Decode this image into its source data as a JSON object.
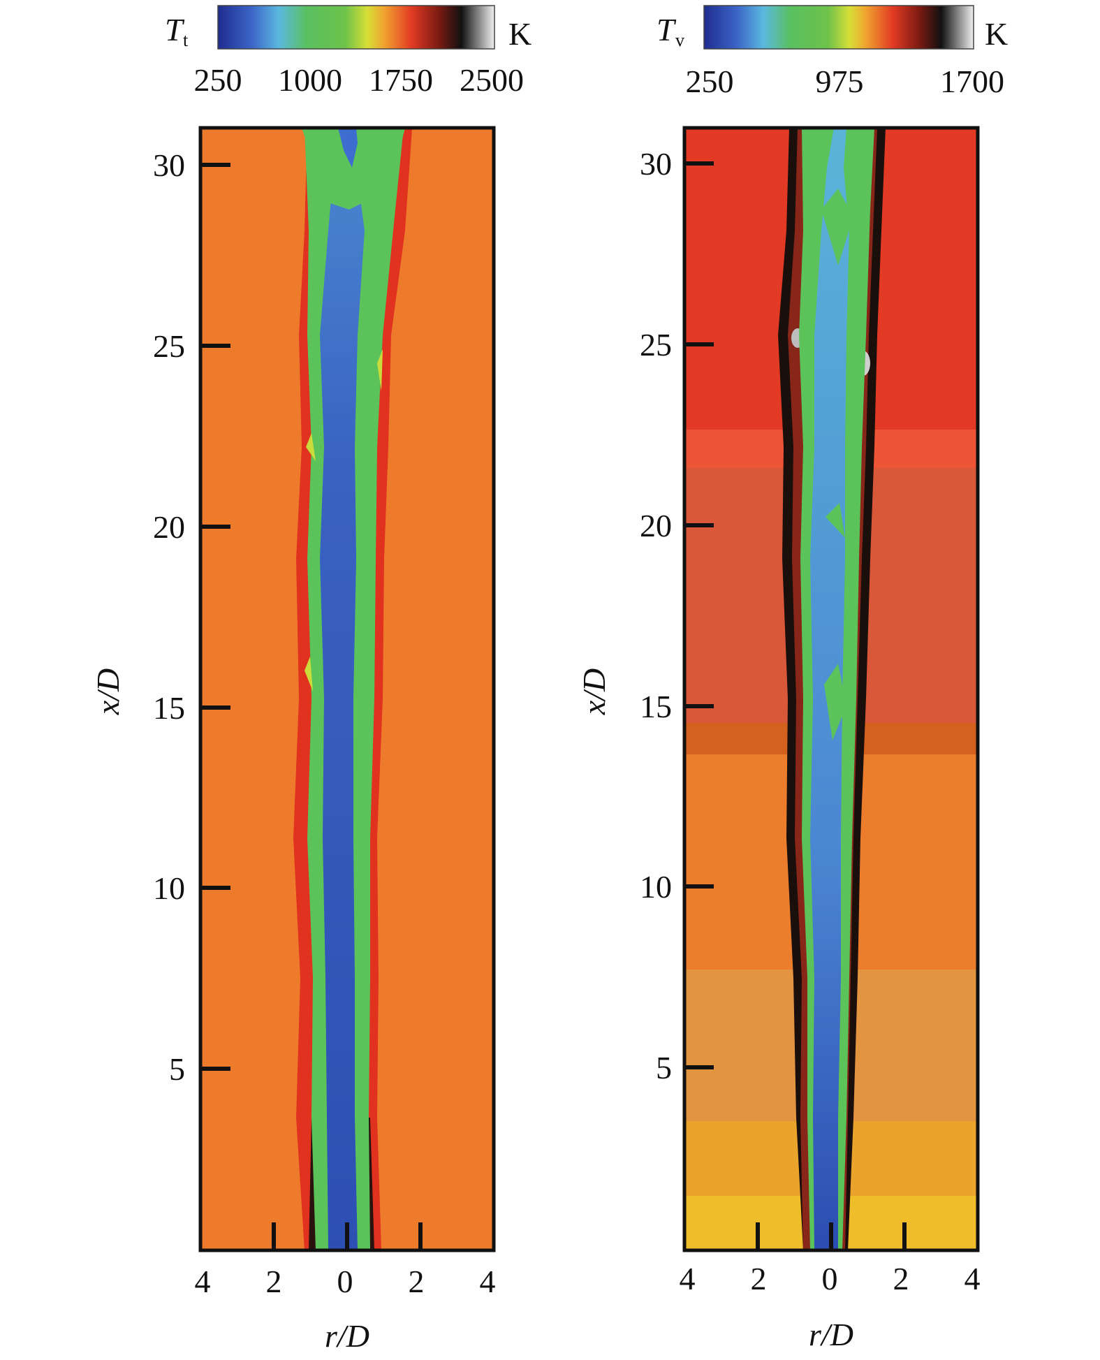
{
  "panels": [
    {
      "id": "left",
      "colorbar": {
        "symbol": "T",
        "subscript": "t",
        "unit": "K",
        "ticks": [
          "250",
          "1000",
          "1750",
          "2500"
        ]
      },
      "y_ticks": [
        "30",
        "25",
        "20",
        "15",
        "10",
        "5"
      ],
      "x_ticks": [
        "4",
        "2",
        "0",
        "2",
        "4"
      ],
      "ylabel": "x/D",
      "xlabel": "r/D",
      "colors": {
        "background": "#ee7b2c",
        "core": "#2f55b7",
        "mixing": "#58c25a",
        "flame": "#e0321f"
      }
    },
    {
      "id": "right",
      "colorbar": {
        "symbol": "T",
        "subscript": "v",
        "unit": "K",
        "ticks": [
          "250",
          "975",
          "1700"
        ]
      },
      "y_ticks": [
        "30",
        "25",
        "20",
        "15",
        "10",
        "5"
      ],
      "x_ticks": [
        "4",
        "2",
        "0",
        "2",
        "4"
      ],
      "ylabel": "x/D",
      "xlabel": "r/D",
      "colors": {
        "background_top": "#e23a24",
        "background_mid": "#d9583a",
        "background_low": "#ec7d2d",
        "background_bottom": "#efb027",
        "core": "#2f55b7",
        "mixing": "#58c25a",
        "flame": "#1b0f0c"
      }
    }
  ]
}
